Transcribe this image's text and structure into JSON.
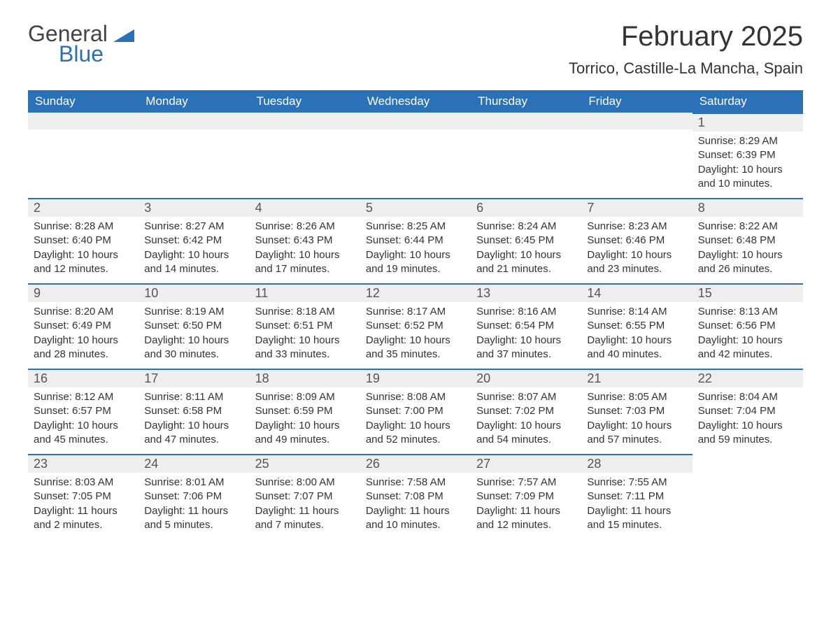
{
  "logo": {
    "text1": "General",
    "text2": "Blue",
    "tri_color": "#2a71b8",
    "gray": "#444444"
  },
  "header": {
    "month_title": "February 2025",
    "location": "Torrico, Castille-La Mancha, Spain"
  },
  "colors": {
    "header_bg": "#2a71b8",
    "header_text": "#ffffff",
    "daybar_bg": "#eeeeee",
    "daybar_border": "#2a71b8",
    "body_text": "#333333",
    "page_bg": "#ffffff"
  },
  "weekdays": [
    "Sunday",
    "Monday",
    "Tuesday",
    "Wednesday",
    "Thursday",
    "Friday",
    "Saturday"
  ],
  "labels": {
    "sunrise": "Sunrise:",
    "sunset": "Sunset:",
    "daylight": "Daylight:"
  },
  "weeks": [
    [
      null,
      null,
      null,
      null,
      null,
      null,
      {
        "n": "1",
        "sr": "8:29 AM",
        "ss": "6:39 PM",
        "dl": "10 hours and 10 minutes."
      }
    ],
    [
      {
        "n": "2",
        "sr": "8:28 AM",
        "ss": "6:40 PM",
        "dl": "10 hours and 12 minutes."
      },
      {
        "n": "3",
        "sr": "8:27 AM",
        "ss": "6:42 PM",
        "dl": "10 hours and 14 minutes."
      },
      {
        "n": "4",
        "sr": "8:26 AM",
        "ss": "6:43 PM",
        "dl": "10 hours and 17 minutes."
      },
      {
        "n": "5",
        "sr": "8:25 AM",
        "ss": "6:44 PM",
        "dl": "10 hours and 19 minutes."
      },
      {
        "n": "6",
        "sr": "8:24 AM",
        "ss": "6:45 PM",
        "dl": "10 hours and 21 minutes."
      },
      {
        "n": "7",
        "sr": "8:23 AM",
        "ss": "6:46 PM",
        "dl": "10 hours and 23 minutes."
      },
      {
        "n": "8",
        "sr": "8:22 AM",
        "ss": "6:48 PM",
        "dl": "10 hours and 26 minutes."
      }
    ],
    [
      {
        "n": "9",
        "sr": "8:20 AM",
        "ss": "6:49 PM",
        "dl": "10 hours and 28 minutes."
      },
      {
        "n": "10",
        "sr": "8:19 AM",
        "ss": "6:50 PM",
        "dl": "10 hours and 30 minutes."
      },
      {
        "n": "11",
        "sr": "8:18 AM",
        "ss": "6:51 PM",
        "dl": "10 hours and 33 minutes."
      },
      {
        "n": "12",
        "sr": "8:17 AM",
        "ss": "6:52 PM",
        "dl": "10 hours and 35 minutes."
      },
      {
        "n": "13",
        "sr": "8:16 AM",
        "ss": "6:54 PM",
        "dl": "10 hours and 37 minutes."
      },
      {
        "n": "14",
        "sr": "8:14 AM",
        "ss": "6:55 PM",
        "dl": "10 hours and 40 minutes."
      },
      {
        "n": "15",
        "sr": "8:13 AM",
        "ss": "6:56 PM",
        "dl": "10 hours and 42 minutes."
      }
    ],
    [
      {
        "n": "16",
        "sr": "8:12 AM",
        "ss": "6:57 PM",
        "dl": "10 hours and 45 minutes."
      },
      {
        "n": "17",
        "sr": "8:11 AM",
        "ss": "6:58 PM",
        "dl": "10 hours and 47 minutes."
      },
      {
        "n": "18",
        "sr": "8:09 AM",
        "ss": "6:59 PM",
        "dl": "10 hours and 49 minutes."
      },
      {
        "n": "19",
        "sr": "8:08 AM",
        "ss": "7:00 PM",
        "dl": "10 hours and 52 minutes."
      },
      {
        "n": "20",
        "sr": "8:07 AM",
        "ss": "7:02 PM",
        "dl": "10 hours and 54 minutes."
      },
      {
        "n": "21",
        "sr": "8:05 AM",
        "ss": "7:03 PM",
        "dl": "10 hours and 57 minutes."
      },
      {
        "n": "22",
        "sr": "8:04 AM",
        "ss": "7:04 PM",
        "dl": "10 hours and 59 minutes."
      }
    ],
    [
      {
        "n": "23",
        "sr": "8:03 AM",
        "ss": "7:05 PM",
        "dl": "11 hours and 2 minutes."
      },
      {
        "n": "24",
        "sr": "8:01 AM",
        "ss": "7:06 PM",
        "dl": "11 hours and 5 minutes."
      },
      {
        "n": "25",
        "sr": "8:00 AM",
        "ss": "7:07 PM",
        "dl": "11 hours and 7 minutes."
      },
      {
        "n": "26",
        "sr": "7:58 AM",
        "ss": "7:08 PM",
        "dl": "11 hours and 10 minutes."
      },
      {
        "n": "27",
        "sr": "7:57 AM",
        "ss": "7:09 PM",
        "dl": "11 hours and 12 minutes."
      },
      {
        "n": "28",
        "sr": "7:55 AM",
        "ss": "7:11 PM",
        "dl": "11 hours and 15 minutes."
      },
      null
    ]
  ]
}
